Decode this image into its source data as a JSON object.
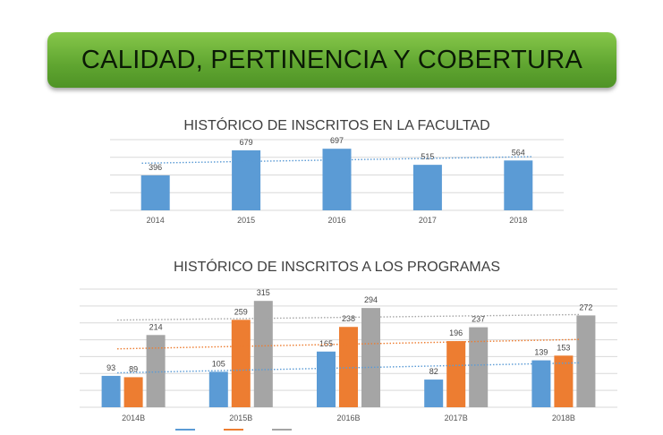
{
  "banner": {
    "title": "CALIDAD, PERTINENCIA Y COBERTURA"
  },
  "chart_data": [
    {
      "type": "bar",
      "title": "HISTÓRICO DE INSCRITOS EN LA FACULTAD",
      "categories": [
        "2014",
        "2015",
        "2016",
        "2017",
        "2018"
      ],
      "series": [
        {
          "values": [
            396,
            679,
            697,
            515,
            564
          ],
          "color": "#5b9bd5"
        }
      ],
      "trendline": {
        "style": "dotted",
        "color": "#5b9bd5"
      },
      "ylim": [
        0,
        800
      ],
      "grid": true
    },
    {
      "type": "bar",
      "title": "HISTÓRICO DE INSCRITOS A LOS PROGRAMAS",
      "categories": [
        "2014B",
        "2015B",
        "2016B",
        "2017B",
        "2018B"
      ],
      "series": [
        {
          "values": [
            93,
            105,
            165,
            82,
            139
          ],
          "color": "#5b9bd5"
        },
        {
          "values": [
            89,
            259,
            238,
            196,
            153
          ],
          "color": "#ed7d31"
        },
        {
          "values": [
            214,
            315,
            294,
            237,
            272
          ],
          "color": "#a5a5a5"
        }
      ],
      "trendlines": [
        {
          "style": "dotted",
          "color": "#5b9bd5"
        },
        {
          "style": "dotted",
          "color": "#ed7d31"
        },
        {
          "style": "dotted",
          "color": "#a5a5a5"
        }
      ],
      "ylim": [
        0,
        350
      ],
      "grid": true,
      "legend_position": "bottom"
    }
  ]
}
